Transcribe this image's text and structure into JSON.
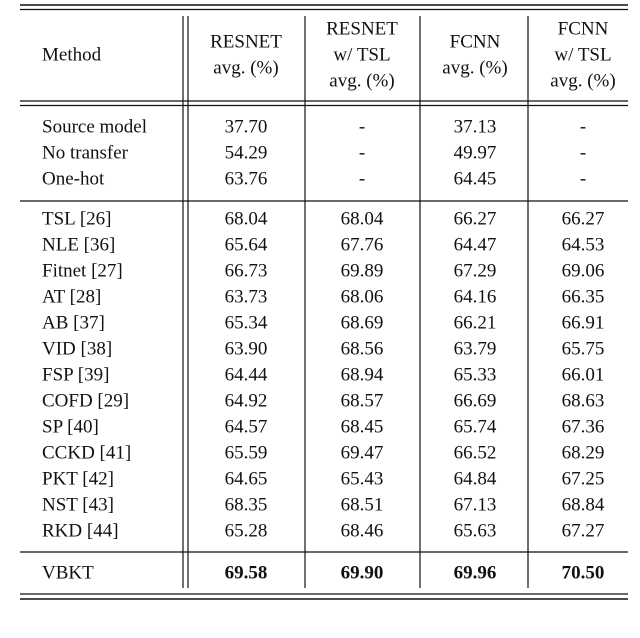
{
  "table": {
    "header": [
      [
        "Method"
      ],
      [
        "RESNET",
        "avg. (%)"
      ],
      [
        "RESNET",
        "w/ TSL",
        "avg. (%)"
      ],
      [
        "FCNN",
        "avg. (%)"
      ],
      [
        "FCNN",
        "w/ TSL",
        "avg. (%)"
      ]
    ],
    "groups": [
      [
        [
          "Source model",
          "37.70",
          "-",
          "37.13",
          "-"
        ],
        [
          "No transfer",
          "54.29",
          "-",
          "49.97",
          "-"
        ],
        [
          "One-hot",
          "63.76",
          "-",
          "64.45",
          "-"
        ]
      ],
      [
        [
          "TSL [26]",
          "68.04",
          "68.04",
          "66.27",
          "66.27"
        ],
        [
          "NLE [36]",
          "65.64",
          "67.76",
          "64.47",
          "64.53"
        ],
        [
          "Fitnet [27]",
          "66.73",
          "69.89",
          "67.29",
          "69.06"
        ],
        [
          "AT [28]",
          "63.73",
          "68.06",
          "64.16",
          "66.35"
        ],
        [
          "AB [37]",
          "65.34",
          "68.69",
          "66.21",
          "66.91"
        ],
        [
          "VID [38]",
          "63.90",
          "68.56",
          "63.79",
          "65.75"
        ],
        [
          "FSP [39]",
          "64.44",
          "68.94",
          "65.33",
          "66.01"
        ],
        [
          "COFD [29]",
          "64.92",
          "68.57",
          "66.69",
          "68.63"
        ],
        [
          "SP [40]",
          "64.57",
          "68.45",
          "65.74",
          "67.36"
        ],
        [
          "CCKD [41]",
          "65.59",
          "69.47",
          "66.52",
          "68.29"
        ],
        [
          "PKT [42]",
          "64.65",
          "65.43",
          "64.84",
          "67.25"
        ],
        [
          "NST [43]",
          "68.35",
          "68.51",
          "67.13",
          "68.84"
        ],
        [
          "RKD [44]",
          "65.28",
          "68.46",
          "65.63",
          "67.27"
        ]
      ],
      [
        [
          "VBKT",
          "69.58",
          "69.90",
          "69.96",
          "70.50"
        ]
      ]
    ]
  }
}
